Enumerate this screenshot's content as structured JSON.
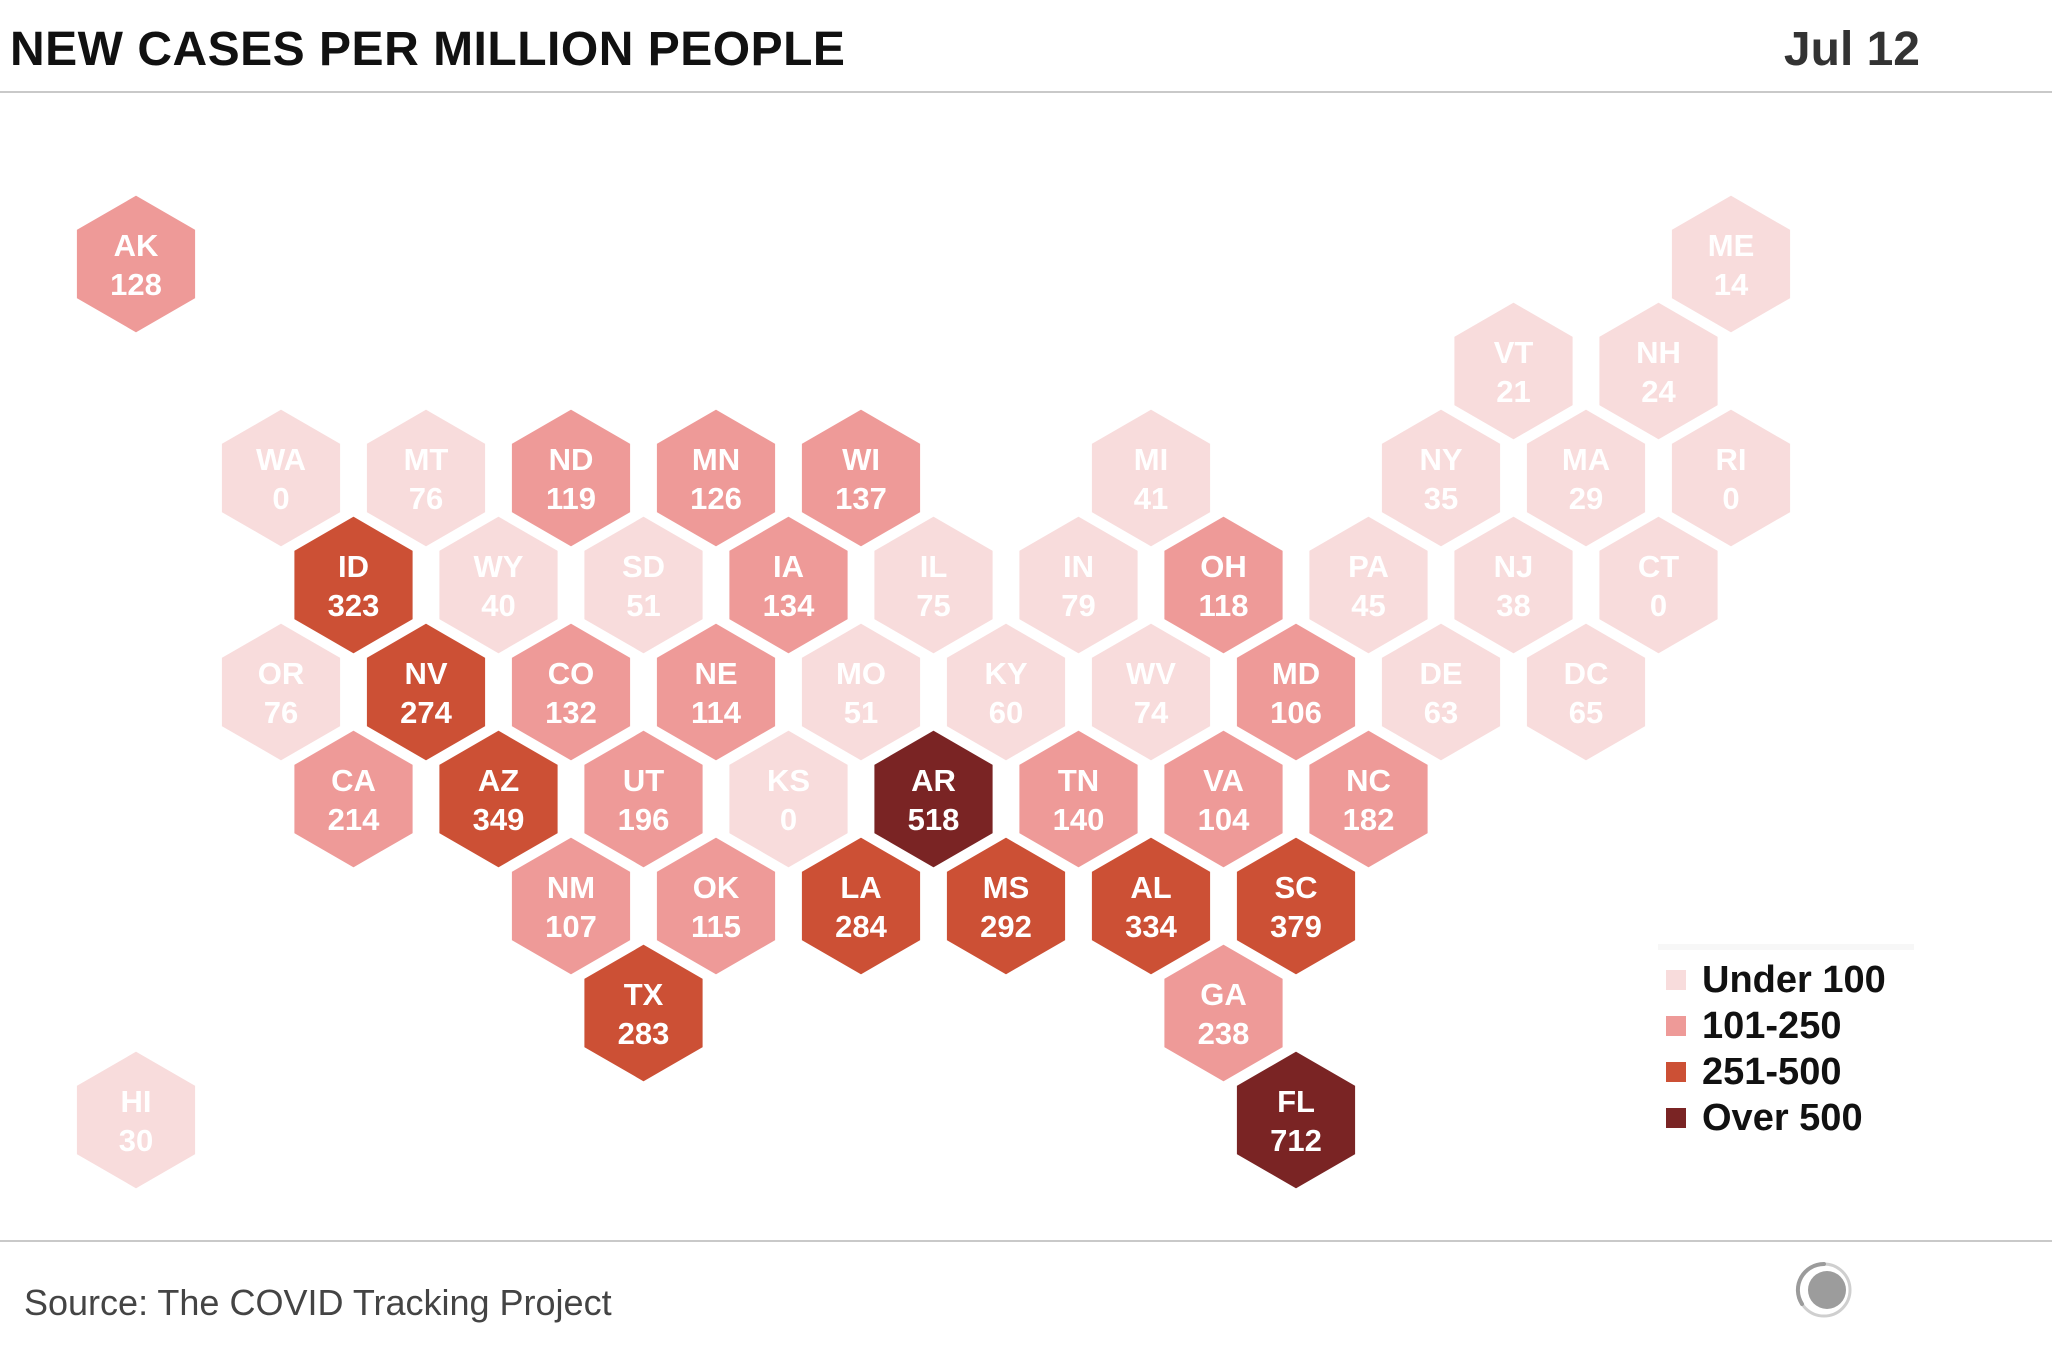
{
  "title": "NEW CASES PER MILLION PEOPLE",
  "date": "Jul 12",
  "source": "Source: The COVID Tracking Project",
  "colors": {
    "under_100": "#f8dcdc",
    "101_250": "#ee9a98",
    "251_500": "#cc5035",
    "over_500": "#7a2424",
    "text_light_bg": "#ffffff",
    "text_dark_bg": "#ffffff"
  },
  "legend": [
    {
      "label": "Under 100",
      "color": "#f8dcdc"
    },
    {
      "label": "101-250",
      "color": "#ee9a98"
    },
    {
      "label": "251-500",
      "color": "#cc5035"
    },
    {
      "label": "Over 500",
      "color": "#7a2424"
    }
  ],
  "logo_icon": "covid-tracking-project-logo-icon",
  "map_data": {
    "type": "hex-tile-map",
    "metric": "new cases per million people",
    "states": [
      {
        "code": "AK",
        "value": 128,
        "row": 0,
        "col": 0
      },
      {
        "code": "ME",
        "value": 14,
        "row": 0,
        "col": 11
      },
      {
        "code": "VT",
        "value": 21,
        "row": 1,
        "col": 9.5
      },
      {
        "code": "NH",
        "value": 24,
        "row": 1,
        "col": 10.5
      },
      {
        "code": "WA",
        "value": 0,
        "row": 2,
        "col": 1
      },
      {
        "code": "MT",
        "value": 76,
        "row": 2,
        "col": 2
      },
      {
        "code": "ND",
        "value": 119,
        "row": 2,
        "col": 3
      },
      {
        "code": "MN",
        "value": 126,
        "row": 2,
        "col": 4
      },
      {
        "code": "WI",
        "value": 137,
        "row": 2,
        "col": 5
      },
      {
        "code": "MI",
        "value": 41,
        "row": 2,
        "col": 7
      },
      {
        "code": "NY",
        "value": 35,
        "row": 2,
        "col": 9
      },
      {
        "code": "MA",
        "value": 29,
        "row": 2,
        "col": 10
      },
      {
        "code": "RI",
        "value": 0,
        "row": 2,
        "col": 11
      },
      {
        "code": "ID",
        "value": 323,
        "row": 3,
        "col": 1.5
      },
      {
        "code": "WY",
        "value": 40,
        "row": 3,
        "col": 2.5
      },
      {
        "code": "SD",
        "value": 51,
        "row": 3,
        "col": 3.5
      },
      {
        "code": "IA",
        "value": 134,
        "row": 3,
        "col": 4.5
      },
      {
        "code": "IL",
        "value": 75,
        "row": 3,
        "col": 5.5
      },
      {
        "code": "IN",
        "value": 79,
        "row": 3,
        "col": 6.5
      },
      {
        "code": "OH",
        "value": 118,
        "row": 3,
        "col": 7.5
      },
      {
        "code": "PA",
        "value": 45,
        "row": 3,
        "col": 8.5
      },
      {
        "code": "NJ",
        "value": 38,
        "row": 3,
        "col": 9.5
      },
      {
        "code": "CT",
        "value": 0,
        "row": 3,
        "col": 10.5
      },
      {
        "code": "OR",
        "value": 76,
        "row": 4,
        "col": 1
      },
      {
        "code": "NV",
        "value": 274,
        "row": 4,
        "col": 2
      },
      {
        "code": "CO",
        "value": 132,
        "row": 4,
        "col": 3
      },
      {
        "code": "NE",
        "value": 114,
        "row": 4,
        "col": 4
      },
      {
        "code": "MO",
        "value": 51,
        "row": 4,
        "col": 5
      },
      {
        "code": "KY",
        "value": 60,
        "row": 4,
        "col": 6
      },
      {
        "code": "WV",
        "value": 74,
        "row": 4,
        "col": 7
      },
      {
        "code": "MD",
        "value": 106,
        "row": 4,
        "col": 8
      },
      {
        "code": "DE",
        "value": 63,
        "row": 4,
        "col": 9
      },
      {
        "code": "DC",
        "value": 65,
        "row": 4,
        "col": 10
      },
      {
        "code": "CA",
        "value": 214,
        "row": 5,
        "col": 1.5
      },
      {
        "code": "AZ",
        "value": 349,
        "row": 5,
        "col": 2.5
      },
      {
        "code": "UT",
        "value": 196,
        "row": 5,
        "col": 3.5
      },
      {
        "code": "KS",
        "value": 0,
        "row": 5,
        "col": 4.5
      },
      {
        "code": "AR",
        "value": 518,
        "row": 5,
        "col": 5.5
      },
      {
        "code": "TN",
        "value": 140,
        "row": 5,
        "col": 6.5
      },
      {
        "code": "VA",
        "value": 104,
        "row": 5,
        "col": 7.5
      },
      {
        "code": "NC",
        "value": 182,
        "row": 5,
        "col": 8.5
      },
      {
        "code": "NM",
        "value": 107,
        "row": 6,
        "col": 3
      },
      {
        "code": "OK",
        "value": 115,
        "row": 6,
        "col": 4
      },
      {
        "code": "LA",
        "value": 284,
        "row": 6,
        "col": 5
      },
      {
        "code": "MS",
        "value": 292,
        "row": 6,
        "col": 6
      },
      {
        "code": "AL",
        "value": 334,
        "row": 6,
        "col": 7
      },
      {
        "code": "SC",
        "value": 379,
        "row": 6,
        "col": 8
      },
      {
        "code": "TX",
        "value": 283,
        "row": 7,
        "col": 3.5
      },
      {
        "code": "GA",
        "value": 238,
        "row": 7,
        "col": 7.5
      },
      {
        "code": "HI",
        "value": 30,
        "row": 8,
        "col": 0
      },
      {
        "code": "FL",
        "value": 712,
        "row": 8,
        "col": 8
      }
    ]
  }
}
